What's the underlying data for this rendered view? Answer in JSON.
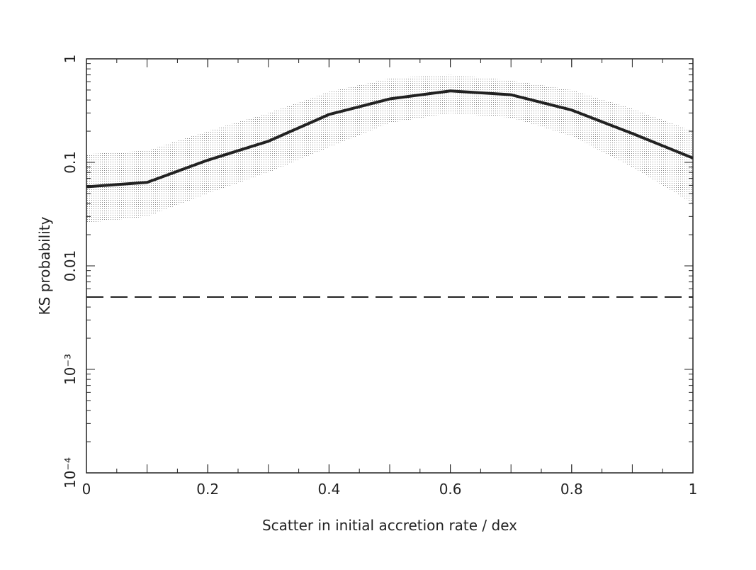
{
  "chart_data": {
    "type": "line",
    "x_label": "Scatter in initial accretion rate / dex",
    "y_label": "KS probability",
    "x": [
      0,
      0.1,
      0.2,
      0.3,
      0.4,
      0.5,
      0.6,
      0.7,
      0.8,
      0.9,
      1
    ],
    "series": [
      {
        "color": "#222222",
        "values": [
          0.058,
          0.064,
          0.105,
          0.16,
          0.29,
          0.41,
          0.49,
          0.45,
          0.32,
          0.19,
          0.11
        ]
      }
    ],
    "band": {
      "color": "#9a9a9a",
      "upper": [
        0.12,
        0.13,
        0.2,
        0.3,
        0.48,
        0.65,
        0.7,
        0.62,
        0.5,
        0.33,
        0.2
      ],
      "lower": [
        0.026,
        0.03,
        0.05,
        0.08,
        0.14,
        0.24,
        0.3,
        0.27,
        0.18,
        0.09,
        0.04
      ]
    },
    "reference_line": {
      "value": 0.005,
      "color": "#222222",
      "style": "dashed"
    },
    "xlim": [
      0,
      1
    ],
    "xticks": [
      0,
      0.2,
      0.4,
      0.6,
      0.8,
      1
    ],
    "ylim": [
      0.0001,
      1
    ],
    "y_scale": "log",
    "yticks": [
      {
        "value": 0.0001,
        "label": "10⁻⁴"
      },
      {
        "value": 0.001,
        "label": "10⁻³"
      },
      0.01,
      0.1,
      1
    ]
  }
}
